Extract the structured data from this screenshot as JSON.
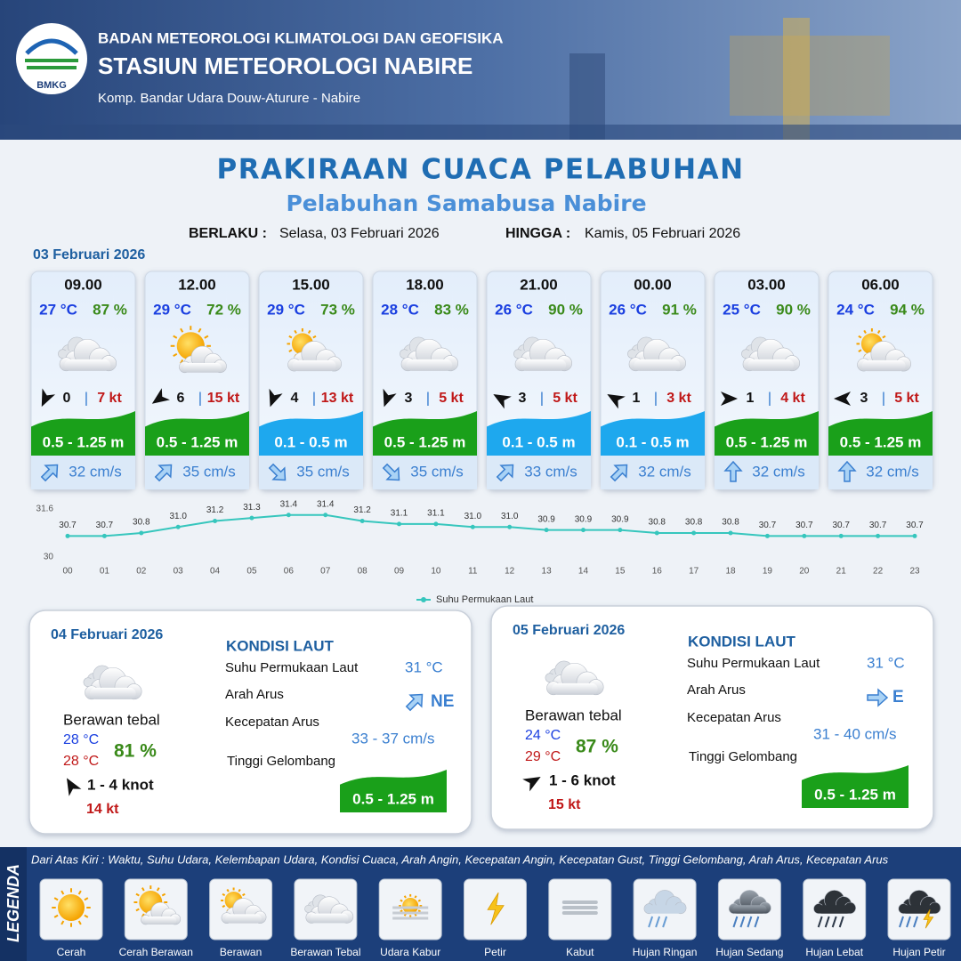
{
  "header": {
    "logo_text": "BMKG",
    "agency": "BADAN METEOROLOGI KLIMATOLOGI DAN GEOFISIKA",
    "station": "STASIUN METEOROLOGI NABIRE",
    "address": "Komp. Bandar Udara Douw-Aturure - Nabire"
  },
  "title": "PRAKIRAAN CUACA PELABUHAN",
  "subtitle": "Pelabuhan Samabusa Nabire",
  "validity": {
    "from_label": "BERLAKU :",
    "from": "Selasa, 03 Februari 2026",
    "to_label": "HINGGA :",
    "to": "Kamis, 05 Februari 2026"
  },
  "day1": {
    "date": "03 Februari 2026",
    "separator": "|",
    "slots": [
      {
        "time": "09.00",
        "temp": "27 °C",
        "humidity": "87 %",
        "wind": "0",
        "gust": "7 kt",
        "wave": "0.5 - 1.25 m",
        "wave_color": "#1aa01a",
        "current": "32 cm/s"
      },
      {
        "time": "12.00",
        "temp": "29 °C",
        "humidity": "72 %",
        "wind": "6",
        "gust": "15 kt",
        "wave": "0.5 - 1.25 m",
        "wave_color": "#1aa01a",
        "current": "35 cm/s"
      },
      {
        "time": "15.00",
        "temp": "29 °C",
        "humidity": "73 %",
        "wind": "4",
        "gust": "13 kt",
        "wave": "0.1 - 0.5 m",
        "wave_color": "#1ea8ee",
        "current": "35 cm/s"
      },
      {
        "time": "18.00",
        "temp": "28 °C",
        "humidity": "83 %",
        "wind": "3",
        "gust": "5 kt",
        "wave": "0.5 - 1.25 m",
        "wave_color": "#1aa01a",
        "current": "35 cm/s"
      },
      {
        "time": "21.00",
        "temp": "26 °C",
        "humidity": "90 %",
        "wind": "3",
        "gust": "5 kt",
        "wave": "0.1 - 0.5 m",
        "wave_color": "#1ea8ee",
        "current": "33 cm/s"
      },
      {
        "time": "00.00",
        "temp": "26 °C",
        "humidity": "91 %",
        "wind": "1",
        "gust": "3 kt",
        "wave": "0.1 - 0.5 m",
        "wave_color": "#1ea8ee",
        "current": "32 cm/s"
      },
      {
        "time": "03.00",
        "temp": "25 °C",
        "humidity": "90 %",
        "wind": "1",
        "gust": "4 kt",
        "wave": "0.5 - 1.25 m",
        "wave_color": "#1aa01a",
        "current": "32 cm/s"
      },
      {
        "time": "06.00",
        "temp": "24 °C",
        "humidity": "94 %",
        "wind": "3",
        "gust": "5 kt",
        "wave": "0.5 - 1.25 m",
        "wave_color": "#1aa01a",
        "current": "32 cm/s"
      }
    ]
  },
  "chart_data": {
    "type": "line",
    "categories": [
      "00",
      "01",
      "02",
      "03",
      "04",
      "05",
      "06",
      "07",
      "08",
      "09",
      "10",
      "11",
      "12",
      "13",
      "14",
      "15",
      "16",
      "17",
      "18",
      "19",
      "20",
      "21",
      "22",
      "23"
    ],
    "series": [
      {
        "name": "Suhu Permukaan Laut",
        "color": "#36c6bd",
        "values": [
          30.7,
          30.7,
          30.8,
          31.0,
          31.2,
          31.3,
          31.4,
          31.4,
          31.2,
          31.1,
          31.1,
          31.0,
          31.0,
          30.9,
          30.9,
          30.9,
          30.8,
          30.8,
          30.8,
          30.7,
          30.7,
          30.7,
          30.7,
          30.7
        ],
        "value_labels": [
          "30.7",
          "30.7",
          "30.8",
          "31.0",
          "31.2",
          "31.3",
          "31.4",
          "31.4",
          "31.2",
          "31.1",
          "31.1",
          "31.0",
          "31.0",
          "30.9",
          "30.9",
          "30.9",
          "30.8",
          "30.8",
          "30.8",
          "30.7",
          "30.7",
          "30.7",
          "30.7",
          "30.7"
        ]
      }
    ],
    "ylim": [
      30,
      31.6
    ],
    "yticks": [
      30,
      31.6
    ],
    "grid": false,
    "legend": "bottom"
  },
  "day_cards": [
    {
      "date": "04 Februari 2026",
      "heading": "KONDISI LAUT",
      "weather": "Berawan tebal",
      "temp_min": "28 °C",
      "temp_max": "28 °C",
      "humidity": "81 %",
      "wind": "1 - 4 knot",
      "gust": "14 kt",
      "sst_label": "Suhu Permukaan Laut",
      "sst": "31 °C",
      "current_dir_label": "Arah Arus",
      "current_dir": "NE",
      "current_speed_label": "Kecepatan Arus",
      "current_speed": "33 - 37 cm/s",
      "wave_label": "Tinggi Gelombang",
      "wave": "0.5 - 1.25 m"
    },
    {
      "date": "05 Februari 2026",
      "heading": "KONDISI LAUT",
      "weather": "Berawan tebal",
      "temp_min": "24 °C",
      "temp_max": "29 °C",
      "humidity": "87 %",
      "wind": "1 - 6 knot",
      "gust": "15 kt",
      "sst_label": "Suhu Permukaan Laut",
      "sst": "31 °C",
      "current_dir_label": "Arah Arus",
      "current_dir": "E",
      "current_speed_label": "Kecepatan Arus",
      "current_speed": "31 - 40 cm/s",
      "wave_label": "Tinggi Gelombang",
      "wave": "0.5 - 1.25 m"
    }
  ],
  "legend": {
    "title": "LEGENDA",
    "description": "Dari Atas Kiri : Waktu, Suhu Udara, Kelembapan Udara, Kondisi Cuaca, Arah Angin, Kecepatan Angin, Kecepatan Gust, Tinggi Gelombang, Arah Arus, Kecepatan Arus",
    "items": [
      "Cerah",
      "Cerah Berawan",
      "Berawan",
      "Berawan Tebal",
      "Udara Kabur",
      "Petir",
      "Kabut",
      "Hujan Ringan",
      "Hujan Sedang",
      "Hujan Lebat",
      "Hujan Petir"
    ]
  }
}
